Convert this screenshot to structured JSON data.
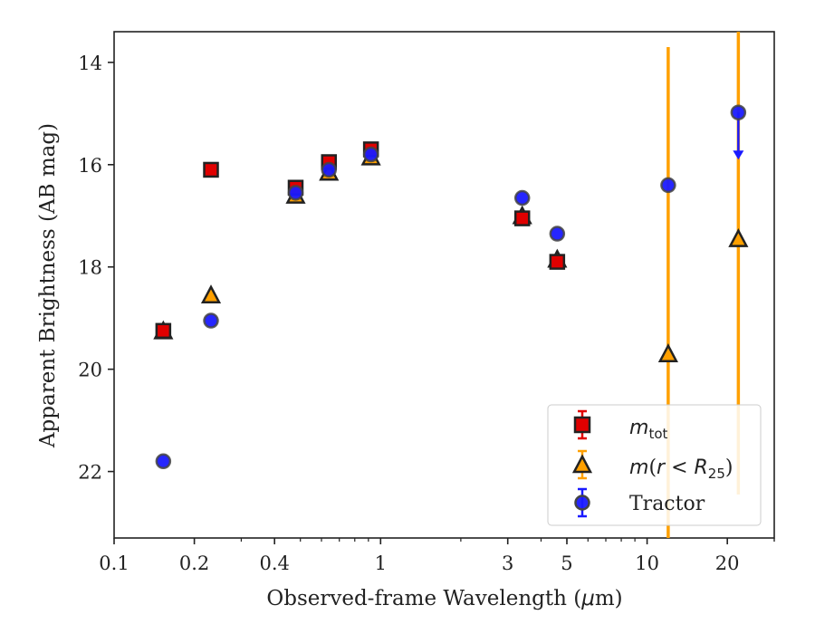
{
  "chart_data": {
    "type": "scatter",
    "title": "",
    "xlabel_pre": "Observed-frame Wavelength (",
    "xlabel_mu": "μ",
    "xlabel_post": "m)",
    "ylabel": "Apparent Brightness (AB mag)",
    "x_scale": "log",
    "xlim": [
      0.1,
      30
    ],
    "ylim": [
      23.3,
      13.4
    ],
    "y_inverted": true,
    "grid": false,
    "legend_position": "lower-right",
    "x_ticks": [
      {
        "value": 0.1,
        "label": "0.1"
      },
      {
        "value": 0.2,
        "label": "0.2"
      },
      {
        "value": 0.4,
        "label": "0.4"
      },
      {
        "value": 1,
        "label": "1"
      },
      {
        "value": 3,
        "label": "3"
      },
      {
        "value": 5,
        "label": "5"
      },
      {
        "value": 10,
        "label": "10"
      },
      {
        "value": 20,
        "label": "20"
      }
    ],
    "y_ticks": [
      {
        "value": 14,
        "label": "14"
      },
      {
        "value": 16,
        "label": "16"
      },
      {
        "value": 18,
        "label": "18"
      },
      {
        "value": 20,
        "label": "20"
      },
      {
        "value": 22,
        "label": "22"
      }
    ],
    "series": [
      {
        "key": "mtot",
        "marker": "square",
        "color": "#e00000",
        "edge": "#222222",
        "legend_base": "m",
        "legend_sub": "tot",
        "points": [
          {
            "x": 0.153,
            "y": 19.25
          },
          {
            "x": 0.231,
            "y": 16.1
          },
          {
            "x": 0.48,
            "y": 16.45
          },
          {
            "x": 0.64,
            "y": 15.95
          },
          {
            "x": 0.92,
            "y": 15.7
          },
          {
            "x": 3.4,
            "y": 17.05
          },
          {
            "x": 4.6,
            "y": 17.9
          }
        ]
      },
      {
        "key": "mr25",
        "marker": "triangle",
        "color": "#ffa000",
        "edge": "#222222",
        "legend_base": "m",
        "legend_paren_open": "(",
        "legend_mid": "r",
        "legend_lt": " < ",
        "legend_R": "R",
        "legend_sub": "25",
        "legend_paren_close": ")",
        "points": [
          {
            "x": 0.153,
            "y": 19.25,
            "yerr": 0.05
          },
          {
            "x": 0.231,
            "y": 18.55,
            "yerr": 0.05
          },
          {
            "x": 0.48,
            "y": 16.6,
            "yerr": 0.05
          },
          {
            "x": 0.64,
            "y": 16.15,
            "yerr": 0.05
          },
          {
            "x": 0.92,
            "y": 15.85,
            "yerr": 0.05
          },
          {
            "x": 3.4,
            "y": 17.0,
            "yerr": 0.05
          },
          {
            "x": 4.6,
            "y": 17.85,
            "yerr": 0.05
          },
          {
            "x": 12.0,
            "y": 19.7,
            "yerr": 6.0
          },
          {
            "x": 22.0,
            "y": 17.45,
            "yerr": 5.0
          }
        ]
      },
      {
        "key": "tractor",
        "marker": "circle",
        "color": "#1a1aff",
        "edge": "#444444",
        "legend": "Tractor",
        "points": [
          {
            "x": 0.153,
            "y": 21.8
          },
          {
            "x": 0.231,
            "y": 19.05
          },
          {
            "x": 0.48,
            "y": 16.55
          },
          {
            "x": 0.64,
            "y": 16.1
          },
          {
            "x": 0.92,
            "y": 15.8
          },
          {
            "x": 3.4,
            "y": 16.65
          },
          {
            "x": 4.6,
            "y": 17.35
          },
          {
            "x": 12.0,
            "y": 16.4
          },
          {
            "x": 22.0,
            "y": 14.98,
            "upper_limit": true
          }
        ]
      }
    ]
  }
}
